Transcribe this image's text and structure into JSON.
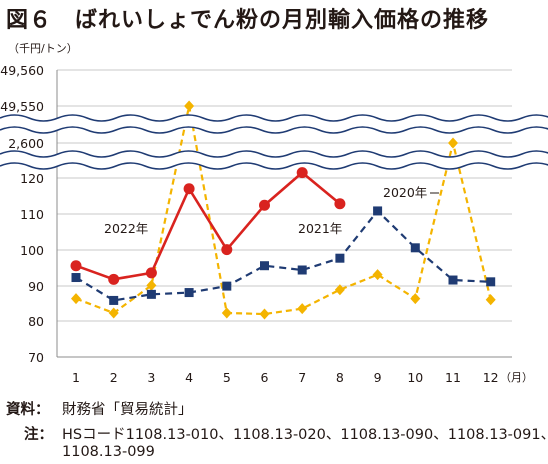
{
  "title": "図６　ばれいしょでん粉の月別輸入価格の推移",
  "chart_data": {
    "type": "line",
    "unit_label": "（千円/トン）",
    "x_unit_label": "（月）",
    "categories": [
      "1",
      "2",
      "3",
      "4",
      "5",
      "6",
      "7",
      "8",
      "9",
      "10",
      "11",
      "12"
    ],
    "y_tick_labels": [
      "49,560",
      "49,550",
      "2,600",
      "120",
      "110",
      "100",
      "90",
      "80",
      "70"
    ],
    "ylim": [
      70,
      120
    ],
    "axis_break": true,
    "grid": true,
    "series": [
      {
        "name": "2020年",
        "style": "dashed",
        "marker": "square",
        "color": "#1f3b73",
        "values": [
          92.2,
          85.8,
          87.5,
          88.0,
          89.8,
          95.5,
          94.3,
          97.6,
          110.8,
          100.5,
          91.5,
          91.0
        ]
      },
      {
        "name": "2021年",
        "style": "dashed",
        "marker": "diamond",
        "color": "#f4b400",
        "values": [
          86.3,
          82.3,
          90.0,
          49550,
          82.3,
          82.0,
          83.5,
          88.8,
          93.0,
          86.3,
          2600,
          86.0
        ]
      },
      {
        "name": "2022年",
        "style": "solid",
        "marker": "circle",
        "color": "#d9231f",
        "values": [
          95.5,
          91.7,
          93.5,
          117.0,
          100.0,
          112.4,
          121.5,
          112.8,
          null,
          null,
          null,
          null
        ]
      }
    ]
  },
  "notes": {
    "source_label": "資料：",
    "source_text": "財務省「貿易統計」",
    "note_label": "注：",
    "note_line1": "HSコード1108.13-010、1108.13-020、1108.13-090、1108.13-091、",
    "note_line2": "1108.13-099"
  }
}
